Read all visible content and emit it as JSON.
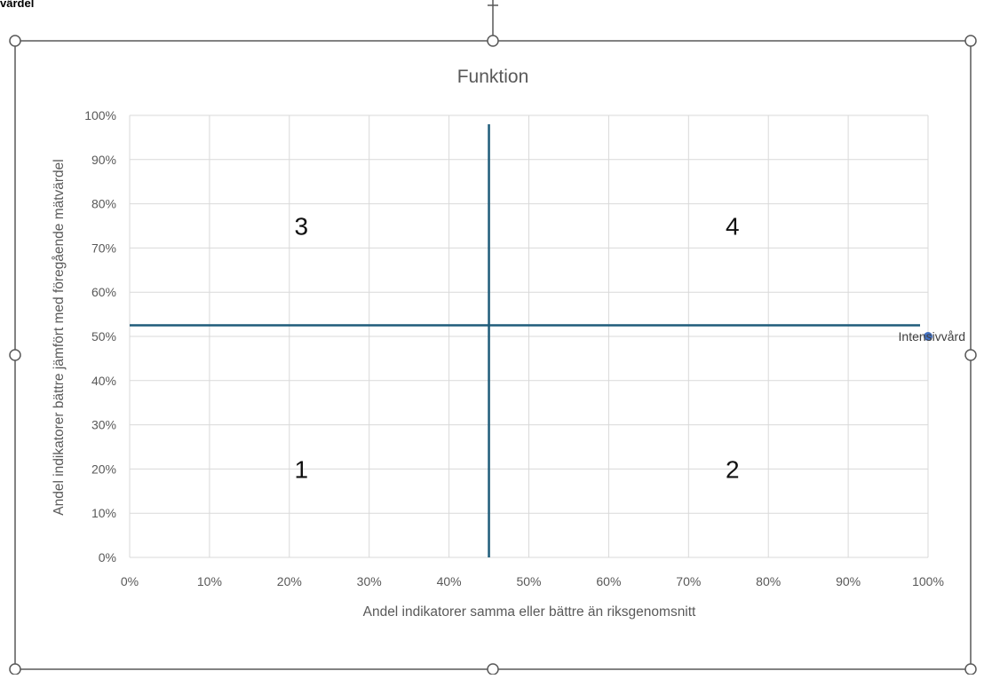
{
  "page": {
    "clipped_label": "värdel"
  },
  "chart_data": {
    "type": "scatter",
    "title": "Funktion",
    "xlabel": "Andel indikatorer samma eller bättre än riksgenomsnitt",
    "ylabel": "Andel indikatorer bättre jämfört med föregående mätvärdel",
    "xlim": [
      0,
      100
    ],
    "ylim": [
      0,
      100
    ],
    "x_ticks": [
      "0%",
      "10%",
      "20%",
      "30%",
      "40%",
      "50%",
      "60%",
      "70%",
      "80%",
      "90%",
      "100%"
    ],
    "y_ticks": [
      "0%",
      "10%",
      "20%",
      "30%",
      "40%",
      "50%",
      "60%",
      "70%",
      "80%",
      "90%",
      "100%"
    ],
    "grid": true,
    "points": [
      {
        "label": "Intensivvård",
        "x": 100,
        "y": 50
      }
    ],
    "divider_vertical_x": 45,
    "divider_horizontal_y": 52.5,
    "quadrants": [
      {
        "label": "1",
        "x": 21.5,
        "y": 20
      },
      {
        "label": "2",
        "x": 75.5,
        "y": 20
      },
      {
        "label": "3",
        "x": 21.5,
        "y": 75
      },
      {
        "label": "4",
        "x": 75.5,
        "y": 75
      }
    ],
    "colors": {
      "divider": "#1f5c7a",
      "point": "#4472c4",
      "grid": "#d9d9d9",
      "tick_text": "#595959",
      "title_text": "#595959",
      "frame": "#595959"
    }
  }
}
